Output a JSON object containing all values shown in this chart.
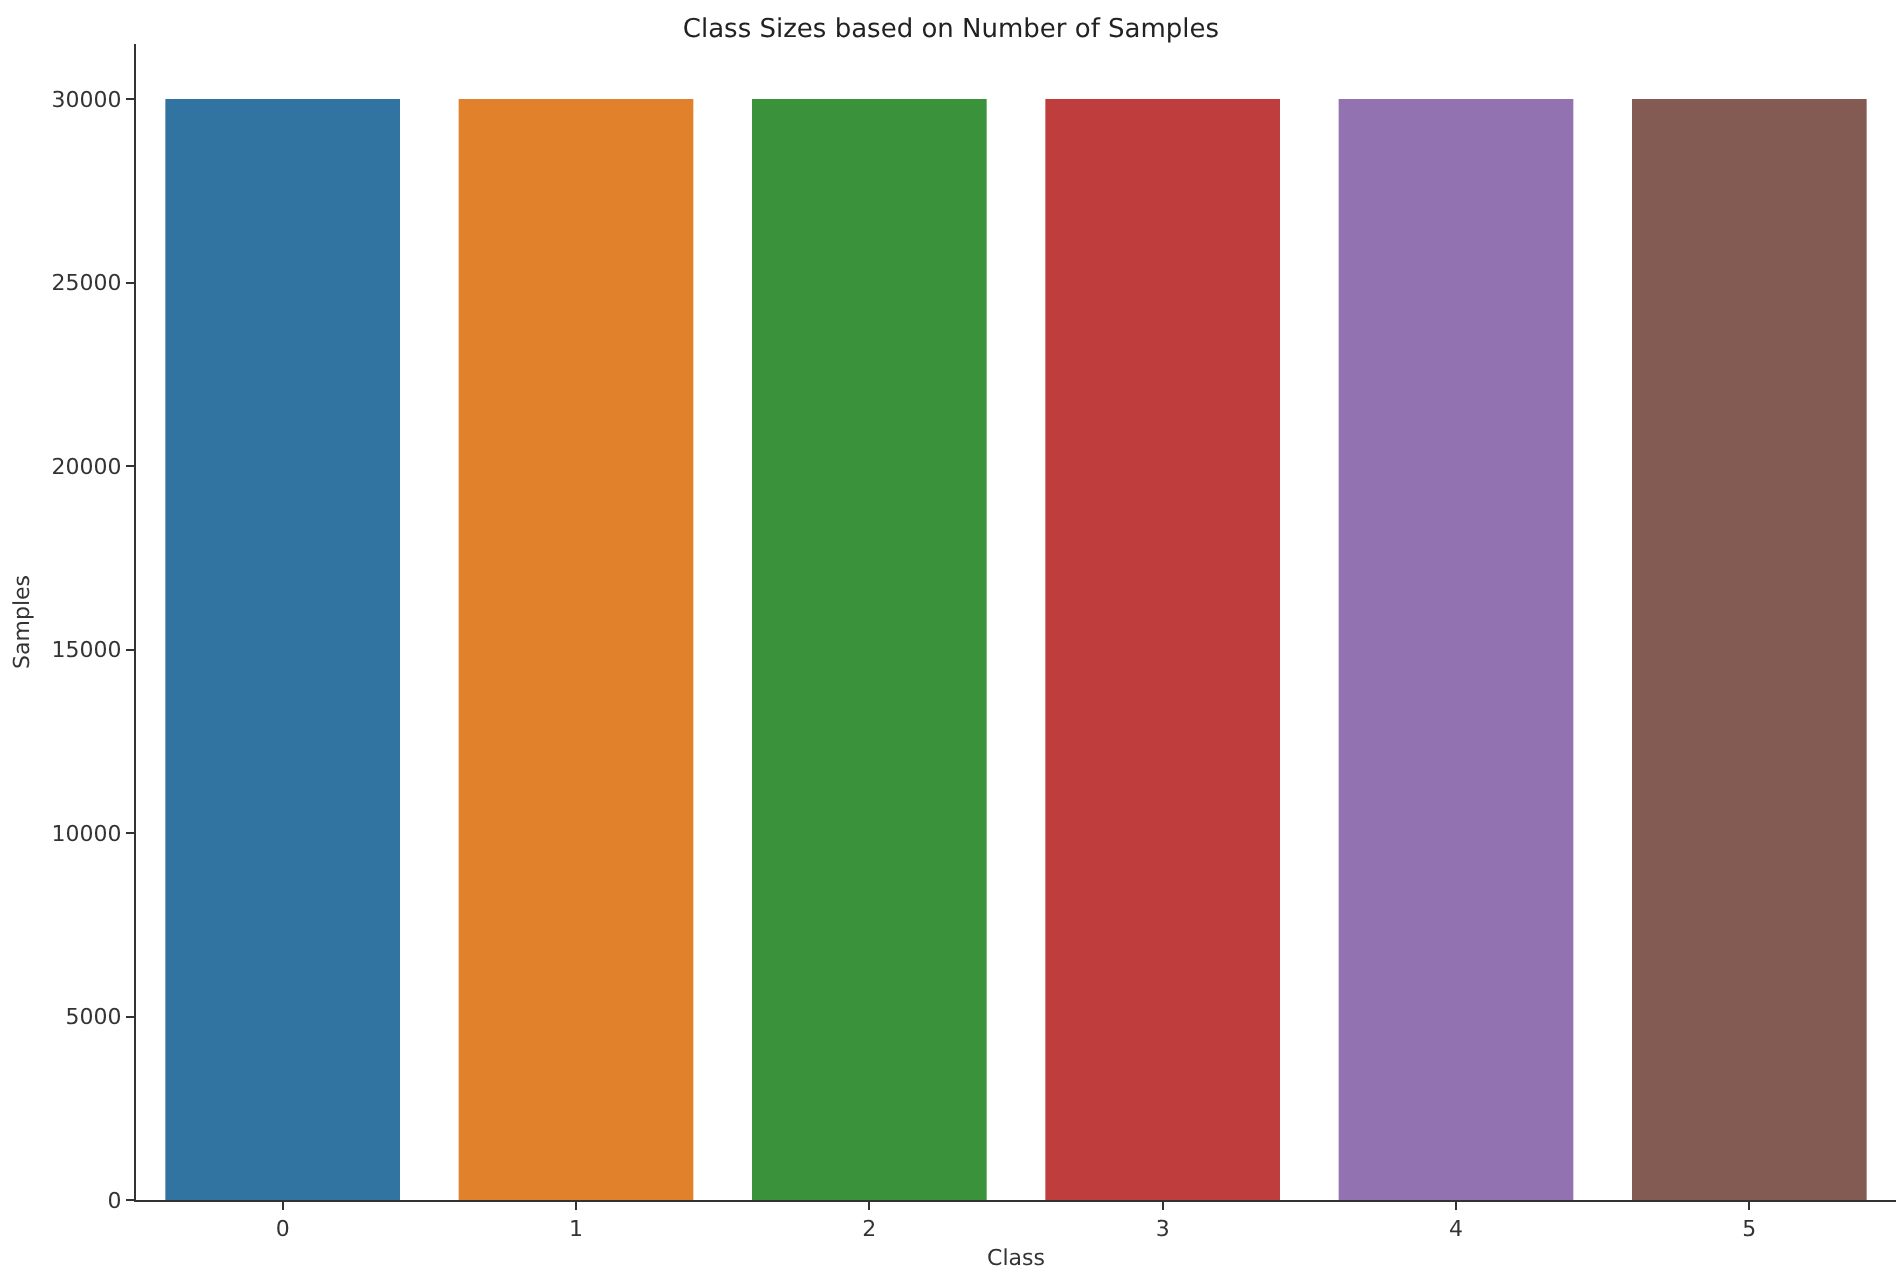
{
  "chart_data": {
    "type": "bar",
    "title": "Class Sizes based on Number of Samples",
    "xlabel": "Class",
    "ylabel": "Samples",
    "categories": [
      "0",
      "1",
      "2",
      "3",
      "4",
      "5"
    ],
    "values": [
      30000,
      30000,
      30000,
      30000,
      30000,
      30000
    ],
    "colors": [
      "#3274a1",
      "#e1812c",
      "#3a923a",
      "#c03d3e",
      "#9372b2",
      "#845b53"
    ],
    "ylim": [
      0,
      31500
    ],
    "yticks": [
      0,
      5000,
      10000,
      15000,
      20000,
      25000,
      30000
    ],
    "grid": false
  }
}
